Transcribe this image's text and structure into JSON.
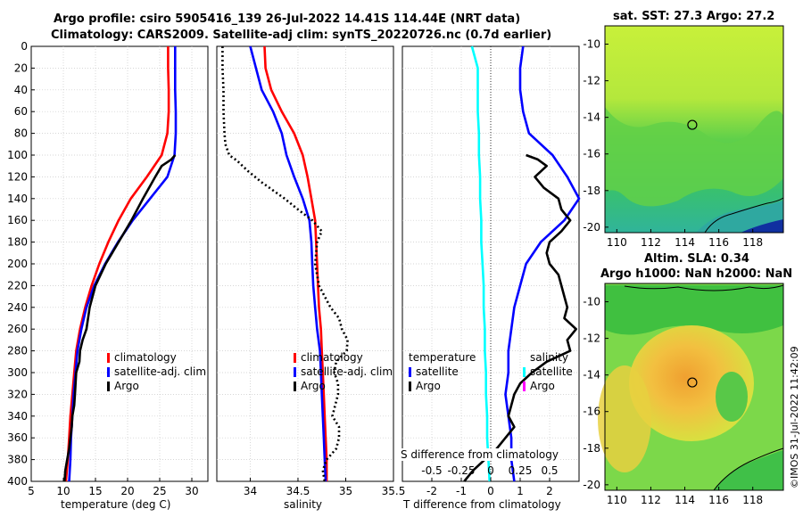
{
  "titles": {
    "main_line1": "Argo profile: csiro 5905416_139 26-Jul-2022 14.41S 114.44E (NRT data)",
    "main_line2": "Climatology: CARS2009. Satellite-adj clim: synTS_20220726.nc (0.7d earlier)",
    "sst_map": "sat. SST: 27.3 Argo: 27.2",
    "sla_map_line1": "Altim. SLA: 0.34",
    "sla_map_line2": "Argo h1000: NaN h2000: NaN",
    "credit": "©IMOS 31-Jul-2022 11:42:09"
  },
  "colors": {
    "climatology": "#ff0000",
    "satellite": "#0000ff",
    "argo": "#000000",
    "salinity_sat": "#00ffff",
    "salinity_argo": "#ff00ff"
  },
  "chart_data": [
    {
      "type": "line",
      "title": "",
      "xlabel": "temperature (deg C)",
      "ylabel": "",
      "xlim": [
        5,
        32.5
      ],
      "ylim": [
        400,
        0
      ],
      "xticks": [
        "5",
        "10",
        "15",
        "20",
        "25",
        "30"
      ],
      "yticks": [
        "0",
        "20",
        "40",
        "60",
        "80",
        "100",
        "120",
        "140",
        "160",
        "180",
        "200",
        "220",
        "240",
        "260",
        "280",
        "300",
        "320",
        "340",
        "360",
        "380",
        "400"
      ],
      "legend": [
        "climatology",
        "satellite-adj. clim",
        "Argo"
      ],
      "series": [
        {
          "name": "climatology",
          "depth": [
            0,
            20,
            40,
            60,
            80,
            100,
            120,
            140,
            160,
            180,
            200,
            220,
            240,
            260,
            280,
            300,
            320,
            340,
            360,
            380,
            400
          ],
          "values": [
            26.3,
            26.3,
            26.4,
            26.4,
            26.2,
            25.3,
            23.0,
            20.5,
            18.6,
            17.0,
            15.6,
            14.4,
            13.4,
            12.6,
            12.0,
            11.7,
            11.4,
            11.1,
            10.9,
            10.7,
            10.4
          ]
        },
        {
          "name": "satellite-adj. clim",
          "depth": [
            0,
            20,
            40,
            60,
            80,
            100,
            120,
            140,
            160,
            180,
            200,
            220,
            240,
            260,
            280,
            300,
            320,
            340,
            360,
            380,
            400
          ],
          "values": [
            27.4,
            27.4,
            27.4,
            27.5,
            27.5,
            27.3,
            26.2,
            23.5,
            20.8,
            18.5,
            16.5,
            14.8,
            13.6,
            12.8,
            12.2,
            11.9,
            11.6,
            11.4,
            11.2,
            11.1,
            10.9
          ]
        },
        {
          "name": "Argo",
          "depth": [
            0,
            20,
            40,
            60,
            80,
            100,
            104,
            110,
            120,
            140,
            160,
            180,
            200,
            220,
            240,
            260,
            270,
            280,
            290,
            300,
            310,
            320,
            330,
            340,
            350,
            360,
            370,
            380,
            390,
            400
          ],
          "values": [
            null,
            null,
            null,
            null,
            null,
            27.4,
            26.8,
            25.3,
            24.3,
            22.4,
            20.6,
            18.6,
            16.6,
            15.0,
            14.1,
            13.6,
            13.0,
            12.6,
            12.5,
            12.0,
            11.9,
            11.8,
            11.7,
            11.4,
            11.3,
            11.1,
            10.9,
            10.6,
            10.3,
            10.2
          ]
        }
      ]
    },
    {
      "type": "line",
      "title": "",
      "xlabel": "salinity",
      "ylabel": "",
      "xlim": [
        33.65,
        35.5
      ],
      "ylim": [
        400,
        0
      ],
      "xticks": [
        "34",
        "34.5",
        "35",
        "35.5"
      ],
      "legend": [
        "climatology",
        "satellite-adj. clim",
        "Argo"
      ],
      "series": [
        {
          "name": "climatology",
          "depth": [
            0,
            20,
            40,
            60,
            80,
            100,
            120,
            140,
            160,
            180,
            200,
            220,
            240,
            260,
            280,
            300,
            320,
            340,
            360,
            380,
            400
          ],
          "values": [
            34.15,
            34.16,
            34.22,
            34.33,
            34.46,
            34.55,
            34.6,
            34.64,
            34.68,
            34.69,
            34.7,
            34.71,
            34.72,
            34.74,
            34.75,
            34.76,
            34.77,
            34.78,
            34.79,
            34.8,
            34.8
          ]
        },
        {
          "name": "satellite-adj. clim",
          "depth": [
            0,
            20,
            40,
            60,
            80,
            100,
            120,
            140,
            160,
            180,
            200,
            220,
            240,
            260,
            280,
            300,
            320,
            340,
            360,
            380,
            400
          ],
          "values": [
            34.0,
            34.06,
            34.12,
            34.24,
            34.33,
            34.38,
            34.46,
            34.55,
            34.62,
            34.64,
            34.65,
            34.66,
            34.68,
            34.7,
            34.73,
            34.74,
            34.75,
            34.76,
            34.77,
            34.78,
            34.79
          ]
        },
        {
          "name": "Argo",
          "depth": [
            0,
            20,
            40,
            60,
            80,
            90,
            100,
            105,
            115,
            125,
            140,
            150,
            160,
            170,
            180,
            200,
            220,
            240,
            250,
            260,
            270,
            280,
            290,
            300,
            310,
            320,
            340,
            350,
            360,
            370,
            380,
            390,
            400
          ],
          "values": [
            33.71,
            33.71,
            33.72,
            33.72,
            33.73,
            33.74,
            33.78,
            33.86,
            33.98,
            34.12,
            34.36,
            34.5,
            34.65,
            34.75,
            34.7,
            34.68,
            34.72,
            34.84,
            34.93,
            34.96,
            35.02,
            35.01,
            34.9,
            34.88,
            34.92,
            34.92,
            34.86,
            34.93,
            34.93,
            34.9,
            34.8,
            34.76,
            34.78
          ]
        }
      ]
    },
    {
      "type": "line",
      "title": "",
      "xlabel": "T difference from climatology",
      "ylabel": "",
      "xlim": [
        -3,
        3
      ],
      "ylim": [
        400,
        0
      ],
      "xticks": [
        "-2",
        "-1",
        "0",
        "1",
        "2"
      ],
      "top_xlabel": "S difference from climatology",
      "top_xticks": [
        "-0.5",
        "-0.25",
        "0",
        "0.25",
        "0.5"
      ],
      "legend_temperature": {
        "heading": "temperature",
        "items": [
          "satellite",
          "Argo"
        ]
      },
      "legend_salinity": {
        "heading": "salinity",
        "items": [
          "satellite",
          "Argo"
        ]
      },
      "series": [
        {
          "name": "T satellite",
          "depth": [
            0,
            20,
            40,
            60,
            80,
            100,
            120,
            140,
            160,
            180,
            200,
            220,
            240,
            260,
            280,
            300,
            320,
            340,
            360,
            380,
            400
          ],
          "values": [
            1.1,
            1.0,
            1.0,
            1.1,
            1.3,
            2.1,
            2.6,
            3.0,
            2.5,
            1.7,
            1.2,
            1.0,
            0.8,
            0.7,
            0.6,
            0.6,
            0.5,
            0.6,
            0.7,
            0.7,
            0.8
          ]
        },
        {
          "name": "T Argo",
          "depth": [
            0,
            20,
            40,
            60,
            80,
            90,
            100,
            104,
            110,
            120,
            130,
            140,
            150,
            160,
            170,
            180,
            190,
            200,
            210,
            220,
            230,
            240,
            250,
            260,
            270,
            280,
            290,
            300,
            310,
            320,
            330,
            340,
            350,
            360,
            370,
            380,
            390,
            400
          ],
          "values": [
            null,
            null,
            null,
            null,
            null,
            null,
            1.2,
            1.6,
            1.9,
            1.5,
            1.8,
            2.3,
            2.4,
            2.7,
            2.4,
            2.0,
            1.9,
            2.0,
            2.3,
            2.4,
            2.5,
            2.6,
            2.5,
            2.9,
            2.6,
            2.7,
            1.9,
            1.4,
            1.0,
            0.8,
            0.7,
            0.6,
            0.8,
            0.5,
            0.2,
            -0.2,
            -0.6,
            -0.9
          ]
        },
        {
          "name": "S satellite",
          "depth": [
            0,
            20,
            40,
            60,
            80,
            100,
            120,
            140,
            160,
            180,
            200,
            220,
            240,
            260,
            280,
            300,
            320,
            340,
            360,
            380,
            400
          ],
          "values": [
            -0.16,
            -0.11,
            -0.11,
            -0.11,
            -0.1,
            -0.1,
            -0.09,
            -0.09,
            -0.08,
            -0.08,
            -0.07,
            -0.06,
            -0.06,
            -0.05,
            -0.05,
            -0.04,
            -0.04,
            -0.03,
            -0.03,
            -0.02,
            -0.01
          ]
        }
      ]
    }
  ],
  "maps": {
    "sst": {
      "xticks": [
        "110",
        "112",
        "114",
        "116",
        "118"
      ],
      "yticks": [
        "-10",
        "-12",
        "-14",
        "-16",
        "-18",
        "-20"
      ],
      "marker_lon": 114.44,
      "marker_lat": -14.41
    },
    "sla": {
      "xticks": [
        "110",
        "112",
        "114",
        "116",
        "118"
      ],
      "yticks": [
        "-10",
        "-12",
        "-14",
        "-16",
        "-18",
        "-20"
      ],
      "marker_lon": 114.44,
      "marker_lat": -14.41
    }
  }
}
